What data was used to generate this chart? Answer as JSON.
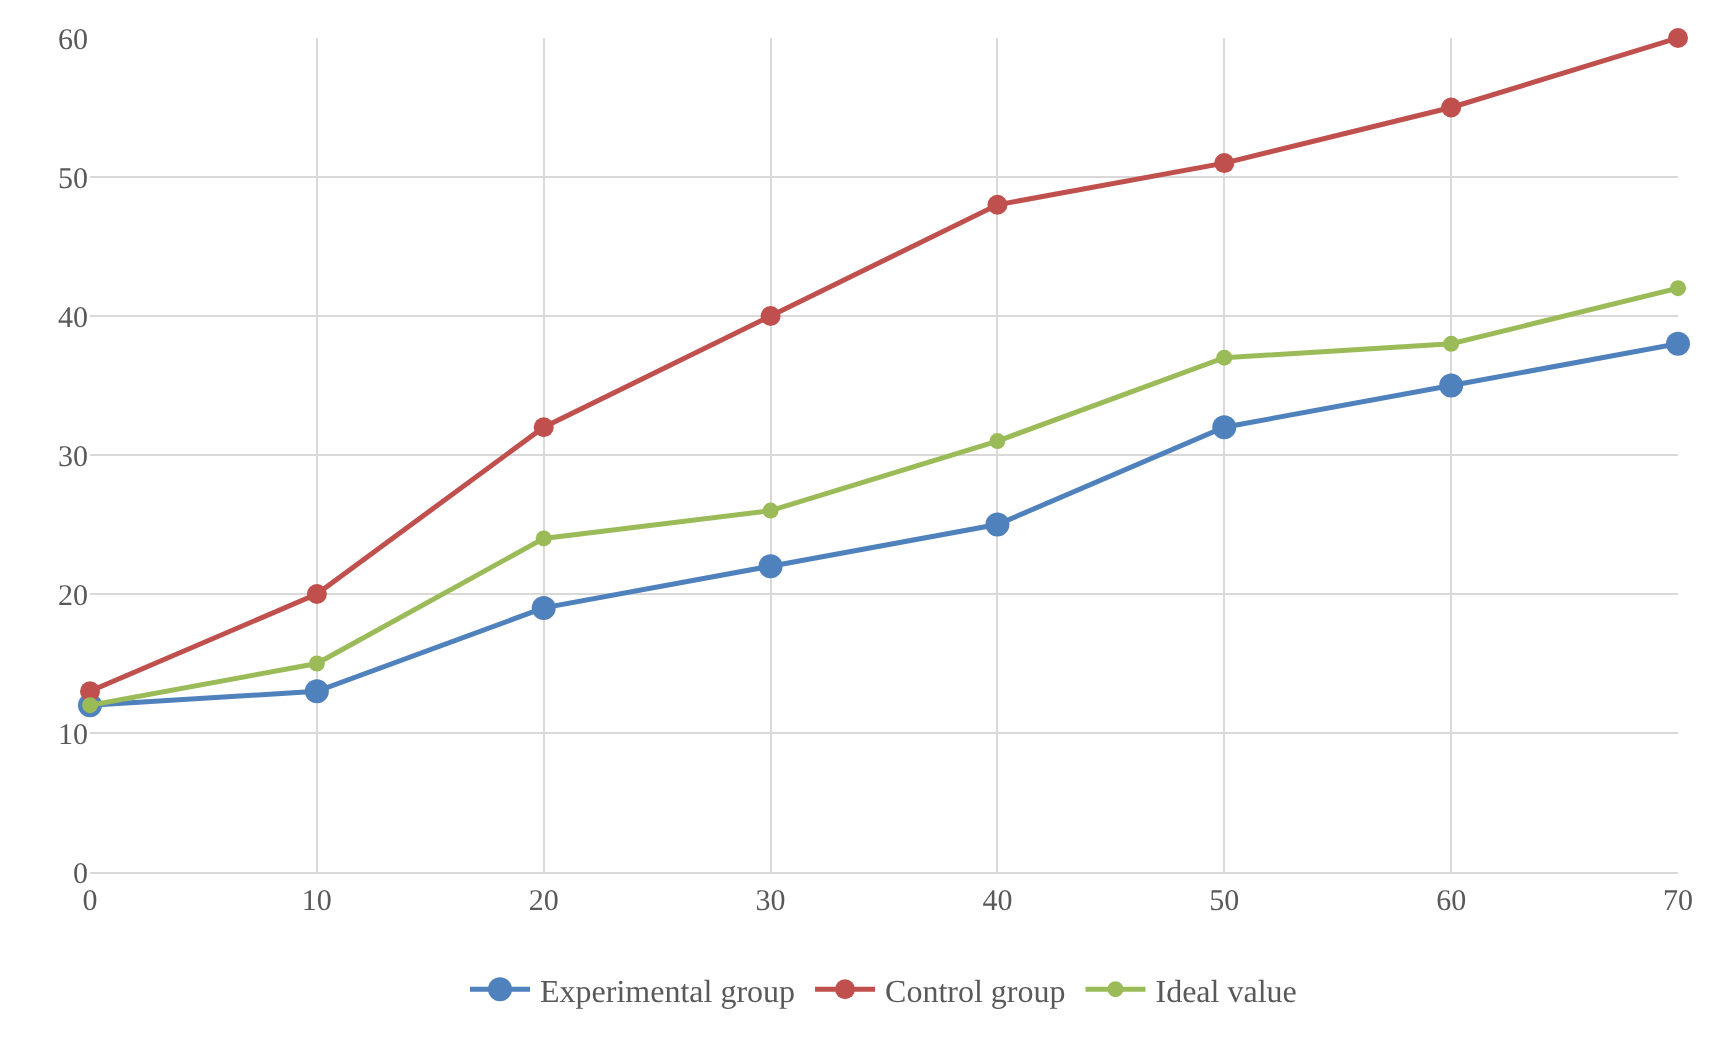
{
  "chart_data": {
    "type": "line",
    "x": [
      0,
      10,
      20,
      30,
      40,
      50,
      60,
      70
    ],
    "series": [
      {
        "name": "Experimental group",
        "color": "#4f81bd",
        "values": [
          12,
          13,
          19,
          22,
          25,
          32,
          35,
          38
        ]
      },
      {
        "name": "Control group",
        "color": "#c0504d",
        "values": [
          13,
          20,
          32,
          40,
          48,
          51,
          55,
          60
        ]
      },
      {
        "name": "Ideal value",
        "color": "#9bbb59",
        "values": [
          12,
          15,
          24,
          26,
          31,
          37,
          38,
          42
        ]
      }
    ],
    "xlim": [
      0,
      70
    ],
    "xticks": [
      0,
      10,
      20,
      30,
      40,
      50,
      60,
      70
    ],
    "ylim": [
      0,
      60
    ],
    "yticks": [
      0,
      10,
      20,
      30,
      40,
      50,
      60
    ],
    "grid": true,
    "legend": "bottom",
    "marker": "circle",
    "line_style": "solid"
  }
}
